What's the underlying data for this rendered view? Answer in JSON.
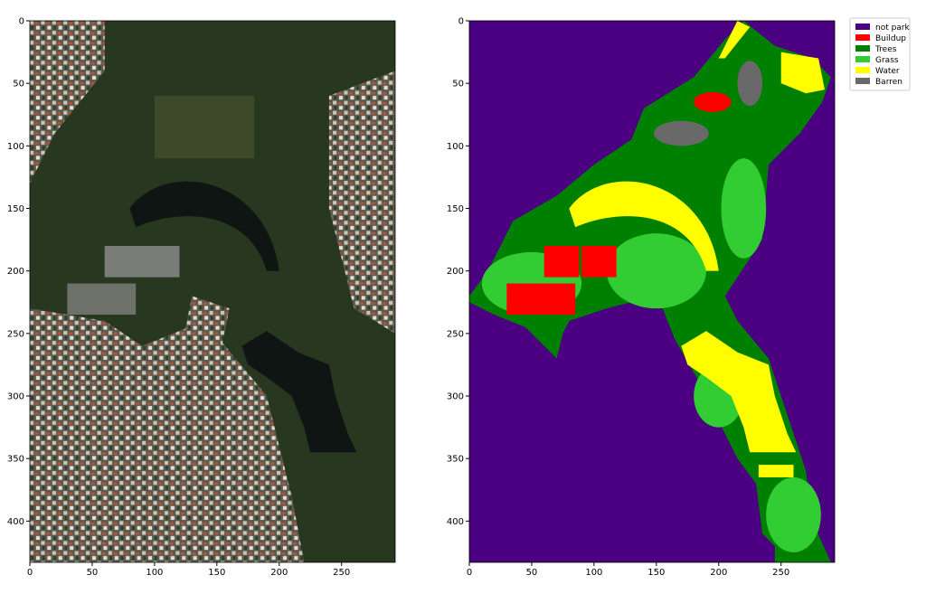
{
  "chart_data": [
    {
      "type": "image",
      "xlim": [
        0,
        293
      ],
      "ylim": [
        433,
        0
      ],
      "xticks": [
        0,
        50,
        100,
        150,
        200,
        250
      ],
      "yticks": [
        0,
        50,
        100,
        150,
        200,
        250,
        300,
        350,
        400
      ]
    },
    {
      "type": "image",
      "xlim": [
        0,
        293
      ],
      "ylim": [
        433,
        0
      ],
      "xticks": [
        0,
        50,
        100,
        150,
        200,
        250
      ],
      "yticks": [
        0,
        50,
        100,
        150,
        200,
        250,
        300,
        350,
        400
      ],
      "legend": [
        {
          "name": "not park",
          "color": "#4b0082"
        },
        {
          "name": "Buildup",
          "color": "#ff0000"
        },
        {
          "name": "Trees",
          "color": "#008000"
        },
        {
          "name": "Grass",
          "color": "#32cd32"
        },
        {
          "name": "Water",
          "color": "#ffff00"
        },
        {
          "name": "Barren",
          "color": "#696969"
        }
      ]
    }
  ]
}
